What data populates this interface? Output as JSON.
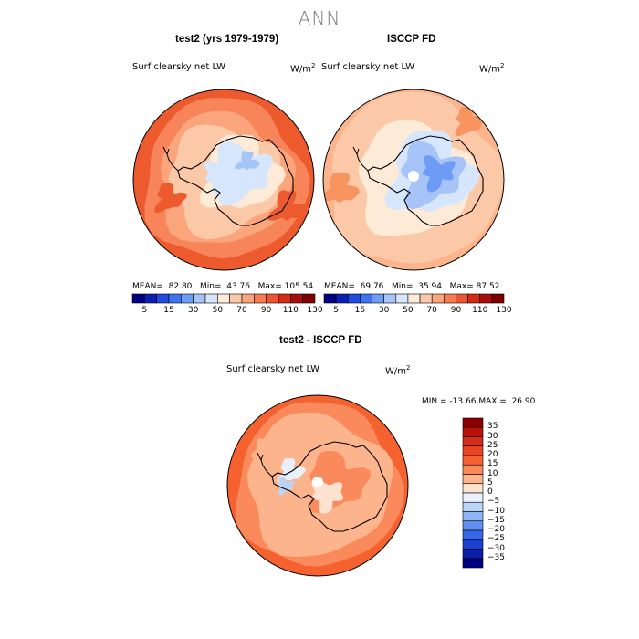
{
  "page": {
    "title": "ANN"
  },
  "chart_data": [
    {
      "type": "heatmap",
      "projection": "south-polar-stereographic",
      "title": "test2 (yrs 1979-1979)",
      "variable": "Surf clearsky net LW",
      "units": "W/m",
      "units_exp": "2",
      "stats": {
        "mean_label": "MEAN=",
        "mean": "82.80",
        "min_label": "Min=",
        "min": "43.76",
        "max_label": "Max=",
        "max": "105.54"
      },
      "colorbar": {
        "ticks": [
          "5",
          "15",
          "30",
          "50",
          "70",
          "90",
          "110",
          "130"
        ],
        "colors": [
          "#000080",
          "#0a1fb4",
          "#1f4be0",
          "#3c73f0",
          "#6e9cf4",
          "#a6c4f8",
          "#d6e6fc",
          "#fdebd8",
          "#fcc9a8",
          "#fba57c",
          "#f87d52",
          "#ed5530",
          "#d42b18",
          "#a80f0c",
          "#7e0000"
        ]
      }
    },
    {
      "type": "heatmap",
      "projection": "south-polar-stereographic",
      "title": "ISCCP FD",
      "variable": "Surf clearsky net LW",
      "units": "W/m",
      "units_exp": "2",
      "stats": {
        "mean_label": "MEAN=",
        "mean": "69.76",
        "min_label": "Min=",
        "min": "35.94",
        "max_label": "Max=",
        "max": "87.52"
      },
      "colorbar": {
        "ticks": [
          "5",
          "15",
          "30",
          "50",
          "70",
          "90",
          "110",
          "130"
        ],
        "colors": [
          "#000080",
          "#0a1fb4",
          "#1f4be0",
          "#3c73f0",
          "#6e9cf4",
          "#a6c4f8",
          "#d6e6fc",
          "#fdebd8",
          "#fcc9a8",
          "#fba57c",
          "#f87d52",
          "#ed5530",
          "#d42b18",
          "#a80f0c",
          "#7e0000"
        ]
      }
    },
    {
      "type": "heatmap",
      "projection": "south-polar-stereographic",
      "title": "test2 - ISCCP FD",
      "variable": "Surf clearsky net LW",
      "units": "W/m",
      "units_exp": "2",
      "stats": {
        "min_label": "MIN =",
        "min": "-13.66",
        "max_label": "MAX =",
        "max": "26.90"
      },
      "colorbar": {
        "orientation": "vertical",
        "ticks": [
          "35",
          "30",
          "25",
          "20",
          "15",
          "10",
          "5",
          "0",
          "−5",
          "−10",
          "−15",
          "−20",
          "−25",
          "−30",
          "−35"
        ],
        "colors": [
          "#8c0000",
          "#b81208",
          "#d42b18",
          "#ea4425",
          "#f5612f",
          "#fa8a5c",
          "#fcb48c",
          "#fde3cf",
          "#e8f0fc",
          "#bcd4f8",
          "#8eb4f4",
          "#5f8ff0",
          "#3468e8",
          "#1a3fd0",
          "#0a1fa8",
          "#000080"
        ]
      }
    }
  ]
}
